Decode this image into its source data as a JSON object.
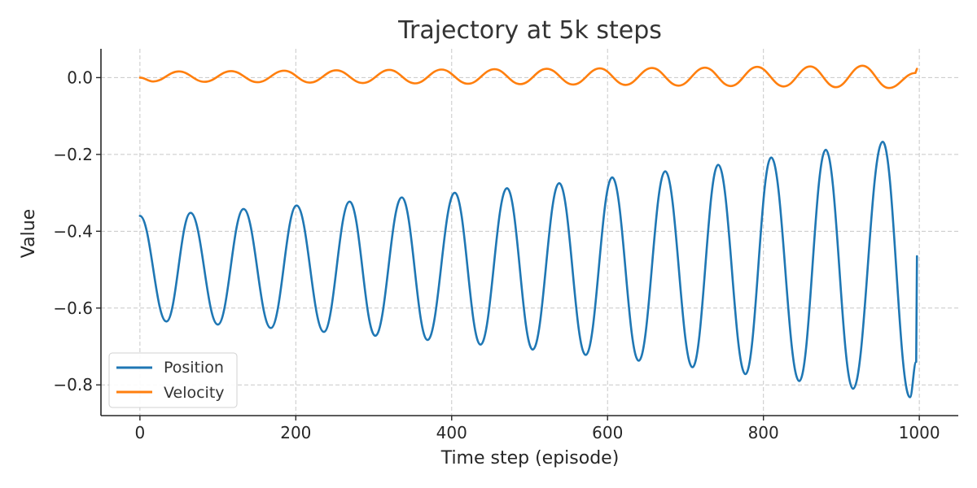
{
  "chart_data": {
    "type": "line",
    "title": "Trajectory at 5k steps",
    "xlabel": "Time step (episode)",
    "ylabel": "Value",
    "xlim": [
      -50,
      1050
    ],
    "ylim": [
      -0.88,
      0.075
    ],
    "xticks": [
      0,
      200,
      400,
      600,
      800,
      1000
    ],
    "xtick_labels": [
      "0",
      "200",
      "400",
      "600",
      "800",
      "1000"
    ],
    "yticks": [
      0.0,
      -0.2,
      -0.4,
      -0.6,
      -0.8
    ],
    "ytick_labels": [
      "0.0",
      "−0.2",
      "−0.4",
      "−0.6",
      "−0.8"
    ],
    "grid": true,
    "legend_position": "bottom-left",
    "series": [
      {
        "name": "Position",
        "color": "#1f77b4",
        "x": [
          0,
          34,
          65,
          100,
          133,
          168,
          201,
          236,
          269,
          302,
          336,
          369,
          404,
          437,
          471,
          504,
          538,
          572,
          606,
          640,
          674,
          709,
          742,
          777,
          810,
          846,
          880,
          915,
          953,
          988,
          996,
          997
        ],
        "y": [
          -0.36,
          -0.635,
          -0.352,
          -0.643,
          -0.342,
          -0.652,
          -0.333,
          -0.662,
          -0.323,
          -0.672,
          -0.312,
          -0.683,
          -0.3,
          -0.695,
          -0.288,
          -0.708,
          -0.275,
          -0.722,
          -0.26,
          -0.737,
          -0.244,
          -0.754,
          -0.227,
          -0.772,
          -0.208,
          -0.79,
          -0.188,
          -0.81,
          -0.167,
          -0.832,
          -0.74,
          -0.465
        ]
      },
      {
        "name": "Velocity",
        "color": "#ff7f0e",
        "x": [
          0,
          17,
          50,
          83,
          117,
          151,
          185,
          218,
          252,
          286,
          320,
          353,
          387,
          421,
          455,
          488,
          522,
          556,
          590,
          623,
          657,
          691,
          725,
          758,
          792,
          826,
          860,
          893,
          927,
          961,
          995,
          997
        ],
        "y": [
          0.0,
          -0.01,
          0.016,
          -0.011,
          0.017,
          -0.012,
          0.018,
          -0.013,
          0.019,
          -0.014,
          0.02,
          -0.015,
          0.021,
          -0.016,
          0.022,
          -0.017,
          0.023,
          -0.018,
          0.024,
          -0.019,
          0.025,
          -0.021,
          0.026,
          -0.022,
          0.028,
          -0.023,
          0.029,
          -0.025,
          0.031,
          -0.027,
          0.012,
          0.023
        ]
      }
    ]
  }
}
